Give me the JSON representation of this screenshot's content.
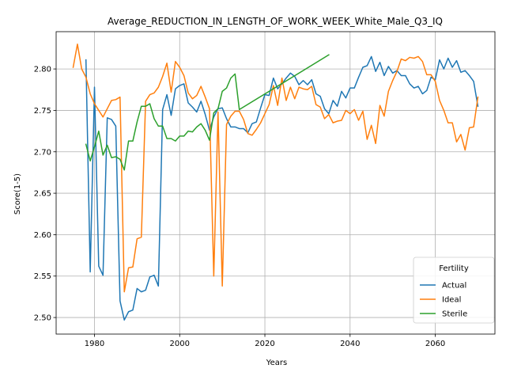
{
  "chart_data": {
    "type": "line",
    "title": "Average_REDUCTION_IN_LENGTH_OF_WORK_WEEK_White_Male_Q3_IQ",
    "xlabel": "Years",
    "ylabel": "Score(1-5)",
    "xlim": [
      1971,
      2074
    ],
    "ylim": [
      2.48,
      2.845
    ],
    "xticks": [
      1980,
      2000,
      2020,
      2040,
      2060
    ],
    "yticks": [
      2.5,
      2.55,
      2.6,
      2.65,
      2.7,
      2.75,
      2.8
    ],
    "ytick_labels": [
      "2.50",
      "2.55",
      "2.60",
      "2.65",
      "2.70",
      "2.75",
      "2.80"
    ],
    "grid": true,
    "legend": {
      "title": "Fertility",
      "placement": "lower-right"
    },
    "series": [
      {
        "name": "Actual",
        "color": "#1f77b4",
        "x": [
          1978,
          1979,
          1980,
          1981,
          1982,
          1983,
          1984,
          1985,
          1986,
          1987,
          1988,
          1989,
          1990,
          1991,
          1992,
          1993,
          1994,
          1995,
          1996,
          1997,
          1998,
          1999,
          2000,
          2001,
          2002,
          2003,
          2004,
          2005,
          2006,
          2007,
          2008,
          2009,
          2010,
          2011,
          2012,
          2013,
          2014,
          2015,
          2016,
          2017,
          2018,
          2019,
          2020,
          2021,
          2022,
          2023,
          2024,
          2025,
          2026,
          2027,
          2028,
          2029,
          2030,
          2031,
          2032,
          2033,
          2034,
          2035,
          2036,
          2037,
          2038,
          2039,
          2040,
          2041,
          2042,
          2043,
          2044,
          2045,
          2046,
          2047,
          2048,
          2049,
          2050,
          2051,
          2052,
          2053,
          2054,
          2055,
          2056,
          2057,
          2058,
          2059,
          2060,
          2061,
          2062,
          2063,
          2064,
          2065,
          2066,
          2067,
          2068,
          2069,
          2070
        ],
        "y": [
          2.811,
          2.555,
          2.778,
          2.562,
          2.551,
          2.741,
          2.739,
          2.731,
          2.52,
          2.497,
          2.507,
          2.509,
          2.535,
          2.531,
          2.533,
          2.549,
          2.551,
          2.538,
          2.751,
          2.769,
          2.744,
          2.776,
          2.78,
          2.782,
          2.759,
          2.754,
          2.748,
          2.761,
          2.745,
          2.726,
          2.742,
          2.752,
          2.753,
          2.74,
          2.73,
          2.73,
          2.728,
          2.728,
          2.723,
          2.734,
          2.736,
          2.753,
          2.769,
          2.768,
          2.789,
          2.776,
          2.782,
          2.789,
          2.795,
          2.791,
          2.781,
          2.786,
          2.781,
          2.787,
          2.77,
          2.767,
          2.752,
          2.746,
          2.762,
          2.755,
          2.773,
          2.765,
          2.777,
          2.777,
          2.79,
          2.802,
          2.804,
          2.815,
          2.797,
          2.808,
          2.792,
          2.803,
          2.795,
          2.798,
          2.792,
          2.792,
          2.782,
          2.777,
          2.779,
          2.77,
          2.774,
          2.79,
          2.787,
          2.811,
          2.8,
          2.813,
          2.802,
          2.81,
          2.796,
          2.798,
          2.792,
          2.785,
          2.755
        ]
      },
      {
        "name": "Ideal",
        "color": "#ff7f0e",
        "x": [
          1975,
          1976,
          1977,
          1978,
          1979,
          1980,
          1981,
          1982,
          1983,
          1984,
          1985,
          1986,
          1987,
          1988,
          1989,
          1990,
          1991,
          1992,
          1993,
          1994,
          1995,
          1996,
          1997,
          1998,
          1999,
          2000,
          2001,
          2002,
          2003,
          2004,
          2005,
          2006,
          2007,
          2008,
          2009,
          2010,
          2011,
          2012,
          2013,
          2014,
          2015,
          2016,
          2017,
          2018,
          2019,
          2020,
          2021,
          2022,
          2023,
          2024,
          2025,
          2026,
          2027,
          2028,
          2029,
          2030,
          2031,
          2032,
          2033,
          2034,
          2035,
          2036,
          2037,
          2038,
          2039,
          2040,
          2041,
          2042,
          2043,
          2044,
          2045,
          2046,
          2047,
          2048,
          2049,
          2050,
          2051,
          2052,
          2053,
          2054,
          2055,
          2056,
          2057,
          2058,
          2059,
          2060,
          2061,
          2062,
          2063,
          2064,
          2065,
          2066,
          2067,
          2068,
          2069,
          2070
        ],
        "y": [
          2.802,
          2.83,
          2.8,
          2.79,
          2.77,
          2.758,
          2.75,
          2.742,
          2.752,
          2.762,
          2.763,
          2.766,
          2.531,
          2.56,
          2.561,
          2.595,
          2.597,
          2.761,
          2.769,
          2.771,
          2.778,
          2.791,
          2.807,
          2.772,
          2.809,
          2.802,
          2.792,
          2.771,
          2.764,
          2.768,
          2.779,
          2.766,
          2.752,
          2.55,
          2.748,
          2.538,
          2.733,
          2.743,
          2.749,
          2.749,
          2.739,
          2.722,
          2.72,
          2.727,
          2.735,
          2.746,
          2.757,
          2.78,
          2.756,
          2.789,
          2.762,
          2.778,
          2.764,
          2.778,
          2.776,
          2.775,
          2.779,
          2.757,
          2.754,
          2.74,
          2.745,
          2.735,
          2.737,
          2.738,
          2.75,
          2.746,
          2.751,
          2.738,
          2.749,
          2.715,
          2.732,
          2.71,
          2.756,
          2.743,
          2.773,
          2.786,
          2.797,
          2.812,
          2.81,
          2.814,
          2.813,
          2.815,
          2.809,
          2.793,
          2.793,
          2.785,
          2.762,
          2.75,
          2.735,
          2.735,
          2.712,
          2.721,
          2.702,
          2.729,
          2.73,
          2.766
        ]
      },
      {
        "name": "Sterile",
        "color": "#2ca02c",
        "x": [
          1978,
          1979,
          1980,
          1981,
          1982,
          1983,
          1984,
          1985,
          1986,
          1987,
          1988,
          1989,
          1990,
          1991,
          1992,
          1993,
          1994,
          1995,
          1996,
          1997,
          1998,
          1999,
          2000,
          2001,
          2002,
          2003,
          2004,
          2005,
          2006,
          2007,
          2008,
          2009,
          2010,
          2011,
          2012,
          2013,
          2014,
          2035
        ],
        "y": [
          2.709,
          2.689,
          2.706,
          2.725,
          2.696,
          2.708,
          2.693,
          2.694,
          2.691,
          2.678,
          2.713,
          2.713,
          2.736,
          2.755,
          2.755,
          2.758,
          2.74,
          2.731,
          2.731,
          2.716,
          2.716,
          2.713,
          2.719,
          2.719,
          2.725,
          2.724,
          2.73,
          2.734,
          2.726,
          2.714,
          2.747,
          2.752,
          2.773,
          2.777,
          2.789,
          2.794,
          2.751,
          2.817
        ]
      }
    ]
  }
}
